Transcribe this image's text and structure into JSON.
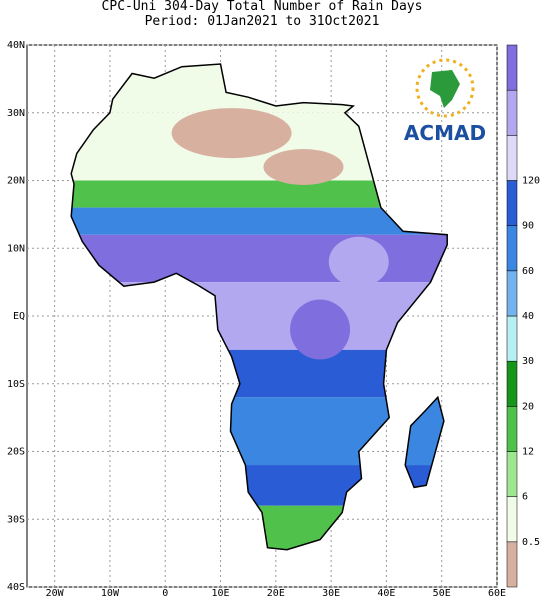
{
  "header": {
    "title": "CPC-Uni 304-Day Total Number of Rain Days",
    "subtitle": "Period: 01Jan2021 to 31Oct2021"
  },
  "map": {
    "lonlim": [
      -25,
      60
    ],
    "latlim": [
      -40,
      40
    ],
    "lonticks": [
      {
        "value": -20,
        "label": "20W"
      },
      {
        "value": -10,
        "label": "10W"
      },
      0,
      {
        "value": 10,
        "label": "10E"
      },
      {
        "value": 20,
        "label": "20E"
      },
      {
        "value": 30,
        "label": "30E"
      },
      {
        "value": 40,
        "label": "40E"
      },
      {
        "value": 50,
        "label": "50E"
      },
      {
        "value": 60,
        "label": "60E"
      }
    ],
    "latticks": [
      {
        "value": -40,
        "label": "40S"
      },
      {
        "value": -30,
        "label": "30S"
      },
      {
        "value": -20,
        "label": "20S"
      },
      {
        "value": -10,
        "label": "10S"
      },
      {
        "value": 0,
        "label": "EQ"
      },
      {
        "value": 10,
        "label": "10N"
      },
      {
        "value": 20,
        "label": "20N"
      },
      {
        "value": 30,
        "label": "30N"
      },
      {
        "value": 40,
        "label": "40N"
      }
    ]
  },
  "legend": {
    "labels": [
      "0.5",
      "6",
      "12",
      "20",
      "30",
      "40",
      "60",
      "90",
      "120"
    ],
    "colors": [
      "#d8b0a0",
      "#f0fbe8",
      "#9ee68f",
      "#50c24c",
      "#17951a",
      "#b6f0f2",
      "#74b4ee",
      "#3a86e0",
      "#2a5cd6",
      "#dcdaf8",
      "#b2a8f0",
      "#7f6ede"
    ]
  },
  "logo": {
    "text": "ACMAD"
  }
}
